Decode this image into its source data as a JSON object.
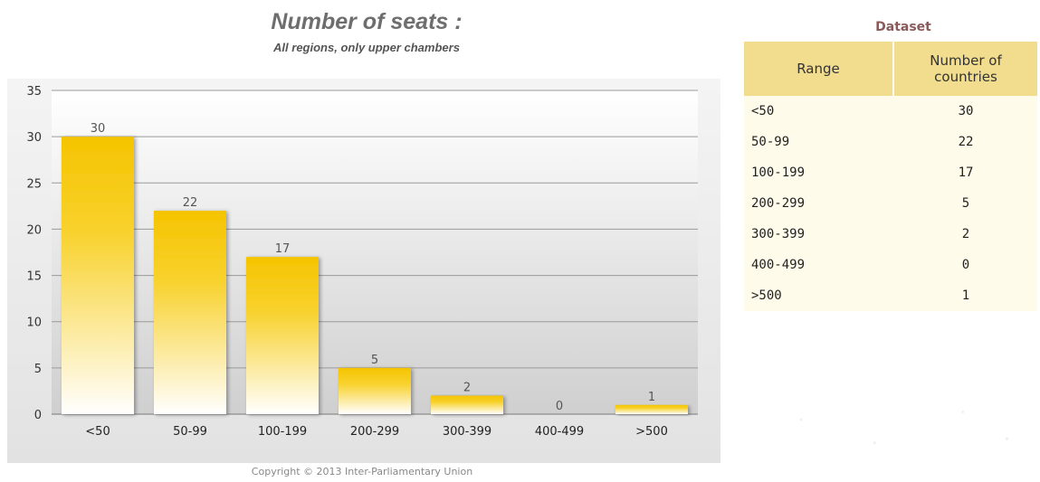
{
  "chart_data": {
    "type": "bar",
    "title": "Number of seats :",
    "subtitle": "All regions, only upper chambers",
    "categories": [
      "<50",
      "50-99",
      "100-199",
      "200-299",
      "300-399",
      "400-499",
      ">500"
    ],
    "values": [
      30,
      22,
      17,
      5,
      2,
      0,
      1
    ],
    "ylim": [
      0,
      35
    ],
    "yticks": [
      0,
      5,
      10,
      15,
      20,
      25,
      30,
      35
    ],
    "grid": true,
    "legend": "none"
  },
  "copyright": "Copyright © 2013 Inter-Parliamentary Union",
  "dataset": {
    "title": "Dataset",
    "header_range": "Range",
    "header_count_line1": "Number of",
    "header_count_line2": "countries",
    "rows": [
      {
        "range": "<50",
        "count": "30"
      },
      {
        "range": "50-99",
        "count": "22"
      },
      {
        "range": "100-199",
        "count": "17"
      },
      {
        "range": "200-299",
        "count": "5"
      },
      {
        "range": "300-399",
        "count": "2"
      },
      {
        "range": "400-499",
        "count": "0"
      },
      {
        "range": ">500",
        "count": "1"
      }
    ]
  },
  "colors": {
    "bar_top": "#f5c400",
    "bar_bottom": "#ffffff",
    "grid": "#9a9a9a",
    "plot_bg_top": "#ffffff",
    "plot_bg_bottom": "#cfcfcf"
  }
}
